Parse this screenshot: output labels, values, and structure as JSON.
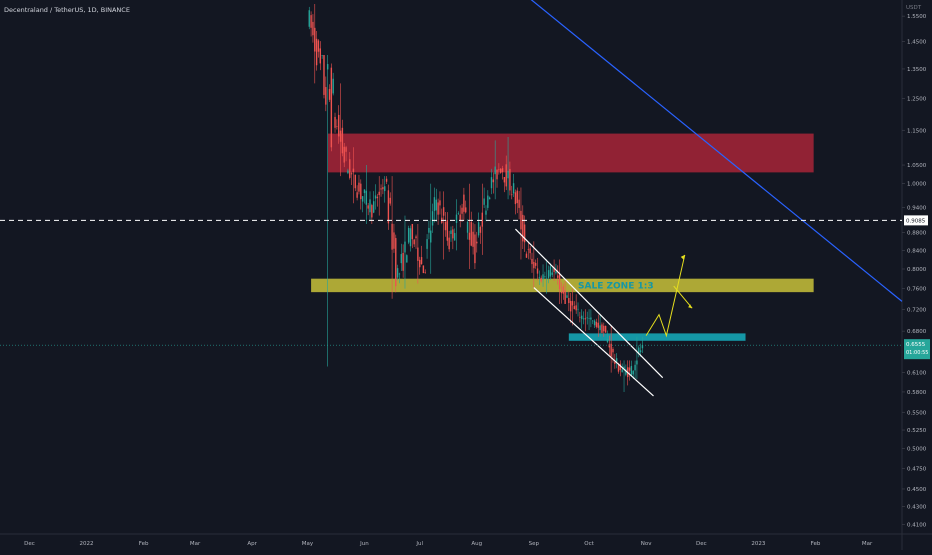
{
  "header": {
    "symbol_line": "Decentraland / TetherUS, 1D, BINANCE"
  },
  "price_axis": {
    "unit": "USDT",
    "ticks": [
      "1.5500",
      "1.4500",
      "1.3500",
      "1.2500",
      "1.1500",
      "1.0500",
      "1.0000",
      "0.9400",
      "0.8800",
      "0.8400",
      "0.8000",
      "0.7600",
      "0.7200",
      "0.6800",
      "0.6100",
      "0.5800",
      "0.5500",
      "0.5250",
      "0.5000",
      "0.4750",
      "0.4500",
      "0.4300",
      "0.4100"
    ],
    "current_price_label": "0.6555",
    "countdown_label": "01:00:55",
    "line_price_label": "0.9085"
  },
  "time_axis": {
    "labels": [
      "Dec",
      "2022",
      "Feb",
      "Mar",
      "Apr",
      "May",
      "Jun",
      "Jul",
      "Aug",
      "Sep",
      "Oct",
      "Nov",
      "Dec",
      "2023",
      "Feb",
      "Mar"
    ]
  },
  "colors": {
    "background": "#131722",
    "up_candle": "#26a69a",
    "down_candle": "#ef5350",
    "supply_zone": "#b2263a",
    "support_zone": "#c9c239",
    "target_zone": "#1597a6",
    "trendline": "#2962ff",
    "channel": "#ffffff",
    "projection": "#e6df1e",
    "price_label_bg": "#ef5350"
  },
  "annotations": {
    "support_zone_text": "SALE ZONE 1:3"
  },
  "chart_data": {
    "type": "candlestick",
    "title": "Decentraland / TetherUS, 1D, BINANCE",
    "y_scale": "log",
    "ylim": [
      0.4,
      1.6
    ],
    "grid": false,
    "x_range": [
      "2021-11-15",
      "2023-03-20"
    ],
    "last_price": 0.6555,
    "horizontal_line": 0.9085,
    "zones": [
      {
        "kind": "supply",
        "from": "2022-05-12",
        "to": "2023-01-31",
        "y_low": 1.03,
        "y_high": 1.14
      },
      {
        "kind": "support",
        "from": "2022-05-03",
        "to": "2023-01-31",
        "y_low": 0.753,
        "y_high": 0.78,
        "label": "SALE ZONE 1:3"
      },
      {
        "kind": "target",
        "from": "2022-09-20",
        "to": "2022-12-25",
        "y_low": 0.663,
        "y_high": 0.676
      }
    ],
    "ohlc_weekly_approx": [
      {
        "date": "2022-05-02",
        "open": 1.56,
        "high": 1.6,
        "low": 1.3,
        "close": 1.35
      },
      {
        "date": "2022-05-09",
        "open": 1.35,
        "high": 1.4,
        "low": 0.62,
        "close": 1.2
      },
      {
        "date": "2022-05-16",
        "open": 1.2,
        "high": 1.3,
        "low": 1.02,
        "close": 1.05
      },
      {
        "date": "2022-05-23",
        "open": 1.05,
        "high": 1.1,
        "low": 0.95,
        "close": 0.98
      },
      {
        "date": "2022-05-30",
        "open": 0.98,
        "high": 1.05,
        "low": 0.9,
        "close": 0.94
      },
      {
        "date": "2022-06-06",
        "open": 0.94,
        "high": 1.02,
        "low": 0.92,
        "close": 1.0
      },
      {
        "date": "2022-06-13",
        "open": 1.0,
        "high": 1.02,
        "low": 0.74,
        "close": 0.78
      },
      {
        "date": "2022-06-20",
        "open": 0.78,
        "high": 0.92,
        "low": 0.76,
        "close": 0.88
      },
      {
        "date": "2022-06-27",
        "open": 0.88,
        "high": 0.9,
        "low": 0.77,
        "close": 0.8
      },
      {
        "date": "2022-07-04",
        "open": 0.8,
        "high": 1.0,
        "low": 0.79,
        "close": 0.96
      },
      {
        "date": "2022-07-11",
        "open": 0.96,
        "high": 0.98,
        "low": 0.82,
        "close": 0.86
      },
      {
        "date": "2022-07-18",
        "open": 0.86,
        "high": 0.96,
        "low": 0.84,
        "close": 0.94
      },
      {
        "date": "2022-07-25",
        "open": 0.94,
        "high": 1.0,
        "low": 0.8,
        "close": 0.84
      },
      {
        "date": "2022-08-01",
        "open": 0.84,
        "high": 1.0,
        "low": 0.83,
        "close": 0.98
      },
      {
        "date": "2022-08-08",
        "open": 0.98,
        "high": 1.12,
        "low": 0.96,
        "close": 1.05
      },
      {
        "date": "2022-08-15",
        "open": 1.05,
        "high": 1.13,
        "low": 0.96,
        "close": 0.98
      },
      {
        "date": "2022-08-22",
        "open": 0.98,
        "high": 0.99,
        "low": 0.82,
        "close": 0.84
      },
      {
        "date": "2022-08-29",
        "open": 0.84,
        "high": 0.86,
        "low": 0.76,
        "close": 0.78
      },
      {
        "date": "2022-09-05",
        "open": 0.78,
        "high": 0.82,
        "low": 0.75,
        "close": 0.8
      },
      {
        "date": "2022-09-12",
        "open": 0.8,
        "high": 0.82,
        "low": 0.73,
        "close": 0.74
      },
      {
        "date": "2022-09-19",
        "open": 0.74,
        "high": 0.76,
        "low": 0.69,
        "close": 0.71
      },
      {
        "date": "2022-09-26",
        "open": 0.71,
        "high": 0.72,
        "low": 0.68,
        "close": 0.7
      },
      {
        "date": "2022-10-03",
        "open": 0.7,
        "high": 0.71,
        "low": 0.67,
        "close": 0.68
      },
      {
        "date": "2022-10-10",
        "open": 0.68,
        "high": 0.69,
        "low": 0.61,
        "close": 0.62
      },
      {
        "date": "2022-10-17",
        "open": 0.62,
        "high": 0.63,
        "low": 0.58,
        "close": 0.61
      },
      {
        "date": "2022-10-24",
        "open": 0.61,
        "high": 0.67,
        "low": 0.6,
        "close": 0.6555
      }
    ]
  }
}
